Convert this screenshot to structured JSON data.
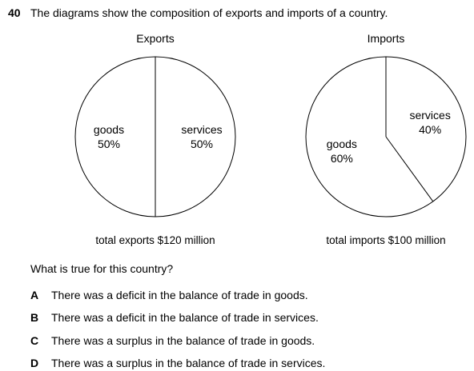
{
  "question": {
    "number": "40",
    "stem": "The diagrams show the composition of exports and imports of a country.",
    "prompt": "What is true for this country?",
    "options": [
      {
        "letter": "A",
        "text": "There was a deficit in the balance of trade in goods."
      },
      {
        "letter": "B",
        "text": "There was a deficit in the balance of trade in services."
      },
      {
        "letter": "C",
        "text": "There was a surplus in the balance of trade in goods."
      },
      {
        "letter": "D",
        "text": "There was a surplus in the balance of trade in services."
      }
    ]
  },
  "chart_data": [
    {
      "type": "pie",
      "title": "Exports",
      "total_label": "total exports $120 million",
      "slices": [
        {
          "label": "goods",
          "value": 50,
          "value_label": "50%"
        },
        {
          "label": "services",
          "value": 50,
          "value_label": "50%"
        }
      ],
      "colors": {
        "fill": "#ffffff",
        "stroke": "#000000"
      }
    },
    {
      "type": "pie",
      "title": "Imports",
      "total_label": "total imports $100 million",
      "slices": [
        {
          "label": "goods",
          "value": 60,
          "value_label": "60%"
        },
        {
          "label": "services",
          "value": 40,
          "value_label": "40%"
        }
      ],
      "colors": {
        "fill": "#ffffff",
        "stroke": "#000000"
      }
    }
  ]
}
